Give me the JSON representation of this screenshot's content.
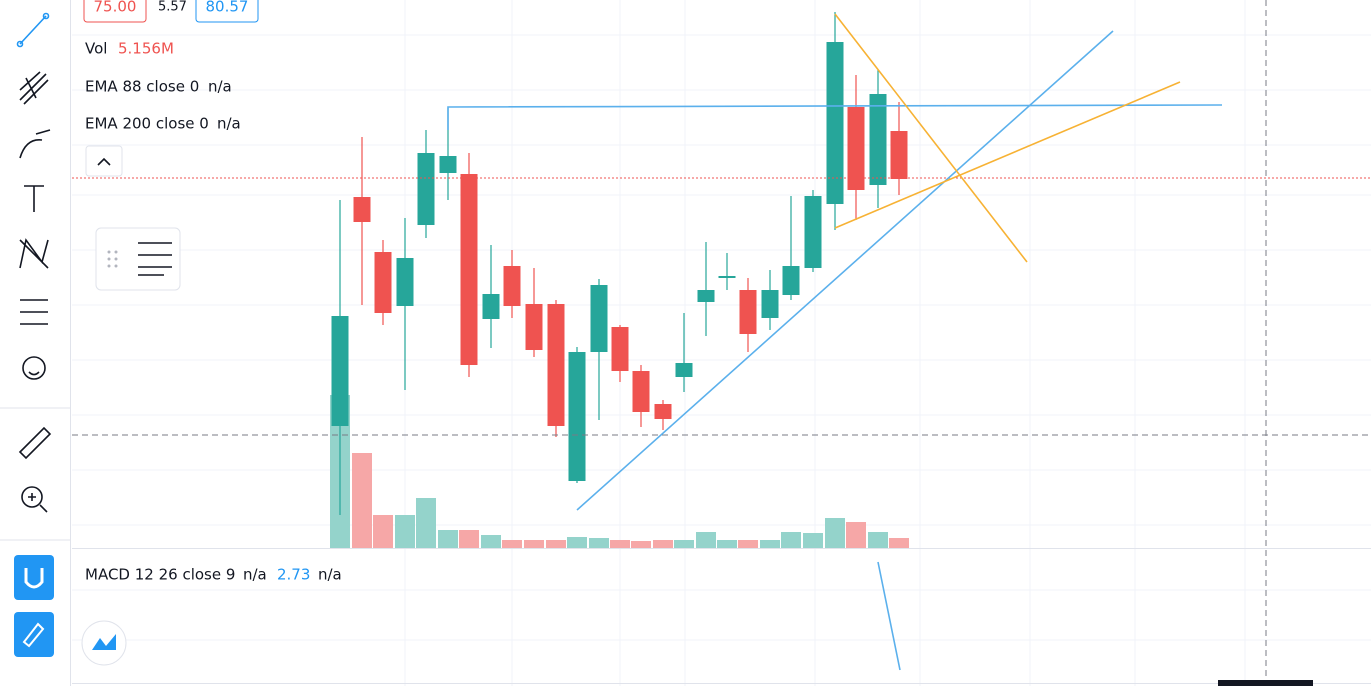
{
  "header": {
    "open": "75.00",
    "change": "5.57",
    "high": "80.57"
  },
  "volume": {
    "label": "Vol",
    "value": "5.156M"
  },
  "ema88": {
    "label": "EMA 88 close 0",
    "value": "n/a"
  },
  "ema200": {
    "label": "EMA 200 close 0",
    "value": "n/a"
  },
  "macd": {
    "label": "MACD 12 26 close 9",
    "v1": "n/a",
    "v2": "2.73",
    "v3": "n/a"
  }
}
